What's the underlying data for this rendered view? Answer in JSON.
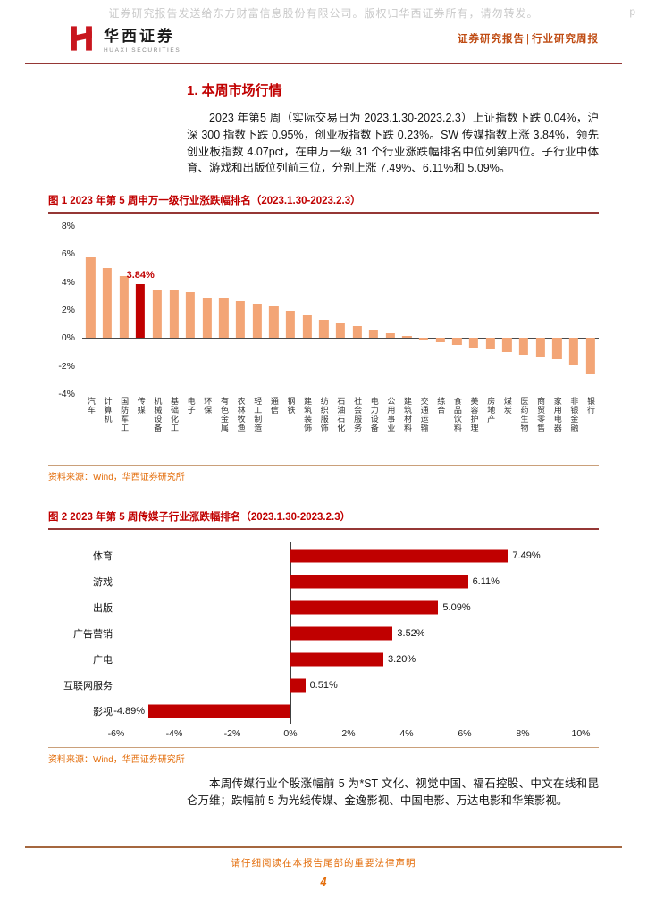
{
  "watermark": {
    "text": "证券研究报告发送给东方财富信息股份有限公司。版权归华西证券所有，请勿转发。",
    "suffix": "p"
  },
  "header": {
    "logo_cn": "华西证券",
    "logo_en": "HUAXI SECURITIES",
    "report_type": "证券研究报告",
    "separator": "|",
    "report_category": "行业研究周报"
  },
  "colors": {
    "brand_red": "#c8161e",
    "accent_red": "#c00000",
    "bar_salmon": "#f3a576",
    "source_orange": "#e36c09",
    "header_orange": "#bf4b12",
    "rule_maroon": "#953735"
  },
  "section": {
    "title": "1. 本周市场行情",
    "paragraph1": "2023 年第5 周（实际交易日为 2023.1.30-2023.2.3）上证指数下跌 0.04%，沪深 300 指数下跌 0.95%，创业板指数下跌 0.23%。SW 传媒指数上涨 3.84%，领先创业板指数 4.07pct，在申万一级 31 个行业涨跌幅排名中位列第四位。子行业中体育、游戏和出版位列前三位，分别上涨 7.49%、6.11%和 5.09%。",
    "paragraph2": "本周传媒行业个股涨幅前 5 为*ST 文化、视觉中国、福石控股、中文在线和昆仑万维；跌幅前 5 为光线传媒、金逸影视、中国电影、万达电影和华策影视。"
  },
  "figure1": {
    "title": "图 1 2023 年第 5 周申万一级行业涨跌幅排名（2023.1.30-2023.2.3）",
    "source": "资料来源：Wind，华西证券研究所"
  },
  "figure2": {
    "title": "图 2 2023 年第 5 周传媒子行业涨跌幅排名（2023.1.30-2023.2.3）",
    "source": "资料来源：Wind，华西证券研究所"
  },
  "footer": {
    "disclaimer": "请仔细阅读在本报告尾部的重要法律声明",
    "page_number": "4"
  },
  "chart_data": [
    {
      "type": "bar",
      "title": "2023年第5周申万一级行业涨跌幅排名（2023.1.30-2023.2.3）",
      "categories": [
        "汽车",
        "计算机",
        "国防军工",
        "传媒",
        "机械设备",
        "基础化工",
        "电子",
        "环保",
        "有色金属",
        "农林牧渔",
        "轻工制造",
        "通信",
        "钢铁",
        "建筑装饰",
        "纺织服饰",
        "石油石化",
        "社会服务",
        "电力设备",
        "公用事业",
        "建筑材料",
        "交通运输",
        "综合",
        "食品饮料",
        "美容护理",
        "房地产",
        "煤炭",
        "医药生物",
        "商贸零售",
        "家用电器",
        "非银金融",
        "银行"
      ],
      "values": [
        5.75,
        5.0,
        4.45,
        3.84,
        3.42,
        3.38,
        3.3,
        2.92,
        2.85,
        2.62,
        2.45,
        2.3,
        1.92,
        1.62,
        1.32,
        1.08,
        0.88,
        0.6,
        0.32,
        0.12,
        -0.15,
        -0.3,
        -0.5,
        -0.65,
        -0.82,
        -1.0,
        -1.18,
        -1.35,
        -1.5,
        -1.88,
        -2.62
      ],
      "xlabel": "",
      "ylabel": "",
      "ylim": [
        -4,
        8
      ],
      "yticks": [
        "8%",
        "6%",
        "4%",
        "2%",
        "0%",
        "-2%",
        "-4%"
      ],
      "grid": false,
      "legend": "none",
      "bar_color": "#f3a576",
      "highlight_category": "传媒",
      "highlight_color": "#c00000",
      "highlight_value_label": "3.84%"
    },
    {
      "type": "bar",
      "orientation": "horizontal",
      "title": "2023年第5周传媒子行业涨跌幅排名（2023.1.30-2023.2.3）",
      "categories": [
        "体育",
        "游戏",
        "出版",
        "广告营销",
        "广电",
        "互联网服务",
        "影视"
      ],
      "values": [
        7.49,
        6.11,
        5.09,
        3.52,
        3.2,
        0.51,
        -4.89
      ],
      "value_labels": [
        "7.49%",
        "6.11%",
        "5.09%",
        "3.52%",
        "3.20%",
        "0.51%",
        "-4.89%"
      ],
      "xlabel": "",
      "ylabel": "",
      "xlim": [
        -6,
        10
      ],
      "xticks": [
        "-6%",
        "-4%",
        "-2%",
        "0%",
        "2%",
        "4%",
        "6%",
        "8%",
        "10%"
      ],
      "grid": false,
      "legend": "none",
      "bar_color": "#c00000"
    }
  ]
}
